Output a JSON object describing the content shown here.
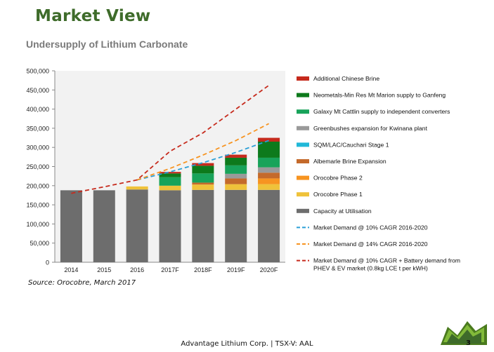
{
  "header": {
    "title": "Market View"
  },
  "source_note": "Source: Orocobre, March 2017",
  "footer": {
    "company": "Advantage Lithium Corp. | TSX-V: AAL",
    "page_number": "3"
  },
  "chart_data": {
    "type": "bar",
    "stacked": true,
    "title": "Undersupply of Lithium Carbonate",
    "xlabel": "",
    "ylabel": "",
    "ylim": [
      0,
      500000
    ],
    "yticks": [
      0,
      50000,
      100000,
      150000,
      200000,
      250000,
      300000,
      350000,
      400000,
      450000,
      500000
    ],
    "ytick_labels": [
      "0",
      "50,000",
      "100,000",
      "150,000",
      "200,000",
      "250,000",
      "300,000",
      "350,000",
      "400,000",
      "450,000",
      "500,000"
    ],
    "categories": [
      "2014",
      "2015",
      "2016",
      "2017F",
      "2018F",
      "2019F",
      "2020F"
    ],
    "grid": false,
    "legend_position": "right",
    "series": [
      {
        "name": "Capacity at Utilisation",
        "color": "#6d6d6d",
        "values": [
          188000,
          188000,
          190000,
          188000,
          189000,
          189000,
          189000
        ]
      },
      {
        "name": "Orocobre Phase 1",
        "color": "#efc23a",
        "values": [
          0,
          0,
          8000,
          12000,
          14000,
          15000,
          15000
        ]
      },
      {
        "name": "Orocobre Phase 2",
        "color": "#f79421",
        "values": [
          0,
          0,
          0,
          0,
          0,
          0,
          15000
        ]
      },
      {
        "name": "Albemarle Brine Expansion",
        "color": "#c46a2b",
        "values": [
          0,
          0,
          0,
          0,
          5000,
          15000,
          15000
        ]
      },
      {
        "name": "SQM/LAC/Cauchari Stage 1",
        "color": "#21b8d8",
        "values": [
          0,
          0,
          0,
          0,
          0,
          0,
          0
        ]
      },
      {
        "name": "Greenbushes expansion for Kwinana plant",
        "color": "#9a9a9a",
        "values": [
          0,
          0,
          0,
          0,
          0,
          12000,
          14000
        ]
      },
      {
        "name": "Galaxy Mt Cattlin supply to independent converters",
        "color": "#18a35a",
        "values": [
          0,
          0,
          0,
          22000,
          24000,
          22000,
          25000
        ]
      },
      {
        "name": "Neometals-Min Res Mt Marion supply to Ganfeng",
        "color": "#0d7a1c",
        "values": [
          0,
          0,
          0,
          10000,
          20000,
          20000,
          42000
        ]
      },
      {
        "name": "Additional Chinese Brine",
        "color": "#c62a1c",
        "values": [
          0,
          0,
          0,
          4000,
          7000,
          8000,
          10000
        ]
      }
    ],
    "lines": [
      {
        "name": "Market Demand @ 10% CAGR 2016-2020",
        "color": "#2a9fd6",
        "dashed": true,
        "values": [
          null,
          null,
          215000,
          236000,
          260000,
          287000,
          318000
        ]
      },
      {
        "name": "Market Demand @ 14% CAGR 2016-2020",
        "color": "#f79421",
        "dashed": true,
        "values": [
          null,
          null,
          215000,
          245000,
          280000,
          318000,
          362000
        ]
      },
      {
        "name": "Market Demand @ 10% CAGR + Battery demand from PHEV & EV market (0.8kg LCE t per kWH)",
        "color": "#c62a1c",
        "dashed": true,
        "values": [
          180000,
          197000,
          215000,
          290000,
          338000,
          400000,
          462000
        ]
      }
    ],
    "legend_order": [
      "Additional Chinese Brine",
      "Neometals-Min Res Mt Marion supply to Ganfeng",
      "Galaxy Mt Cattlin supply to independent converters",
      "Greenbushes expansion for Kwinana plant",
      "SQM/LAC/Cauchari Stage 1",
      "Albemarle Brine Expansion",
      "Orocobre Phase 2",
      "Orocobre Phase 1",
      "Capacity at Utilisation",
      "Market Demand @ 10% CAGR 2016-2020",
      "Market Demand @ 14% CAGR 2016-2020",
      [
        "Market Demand @ 10% CAGR + Battery demand from",
        "PHEV & EV market (0.8kg LCE t per kWH)"
      ]
    ]
  }
}
